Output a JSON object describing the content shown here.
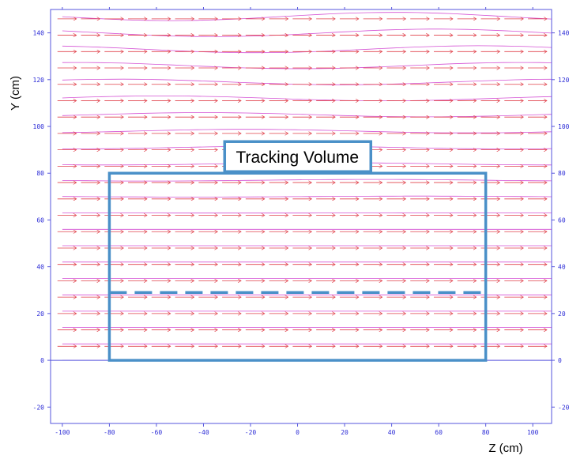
{
  "chart_data": {
    "type": "line",
    "title": "",
    "xlabel": "Z (cm)",
    "ylabel": "Y (cm)",
    "xlim": [
      -105,
      108
    ],
    "ylim": [
      -27,
      150
    ],
    "xticks": [
      -100,
      -80,
      -60,
      -40,
      -20,
      0,
      20,
      40,
      60,
      80,
      100
    ],
    "yticks": [
      -20,
      0,
      20,
      40,
      60,
      80,
      100,
      120,
      140
    ],
    "grid": false,
    "field_lines": {
      "y_values": [
        0,
        7,
        14,
        21,
        28,
        35,
        42,
        49,
        56,
        63,
        70,
        77,
        84,
        91,
        98,
        105,
        112,
        119,
        126,
        133,
        140,
        147
      ],
      "x_start": -100,
      "x_end": 108,
      "color": "#cc33cc"
    },
    "arrows": {
      "rows_y": [
        6,
        13,
        20,
        27,
        34,
        41,
        48,
        55,
        62,
        69,
        76,
        83,
        90,
        97,
        104,
        111,
        118,
        125,
        132,
        139,
        146
      ],
      "columns_x": [
        -94,
        -84,
        -74,
        -64,
        -54,
        -44,
        -34,
        -24,
        -14,
        -4,
        6,
        16,
        26,
        36,
        46,
        56,
        66,
        76,
        86,
        96,
        106
      ],
      "color": "#e0404a"
    },
    "annotation": {
      "label": "Tracking Volume",
      "color": "#4a90c8",
      "box": {
        "x": [
          -80,
          80
        ],
        "y": [
          0,
          80
        ]
      },
      "dashed_line_y": 29
    }
  }
}
